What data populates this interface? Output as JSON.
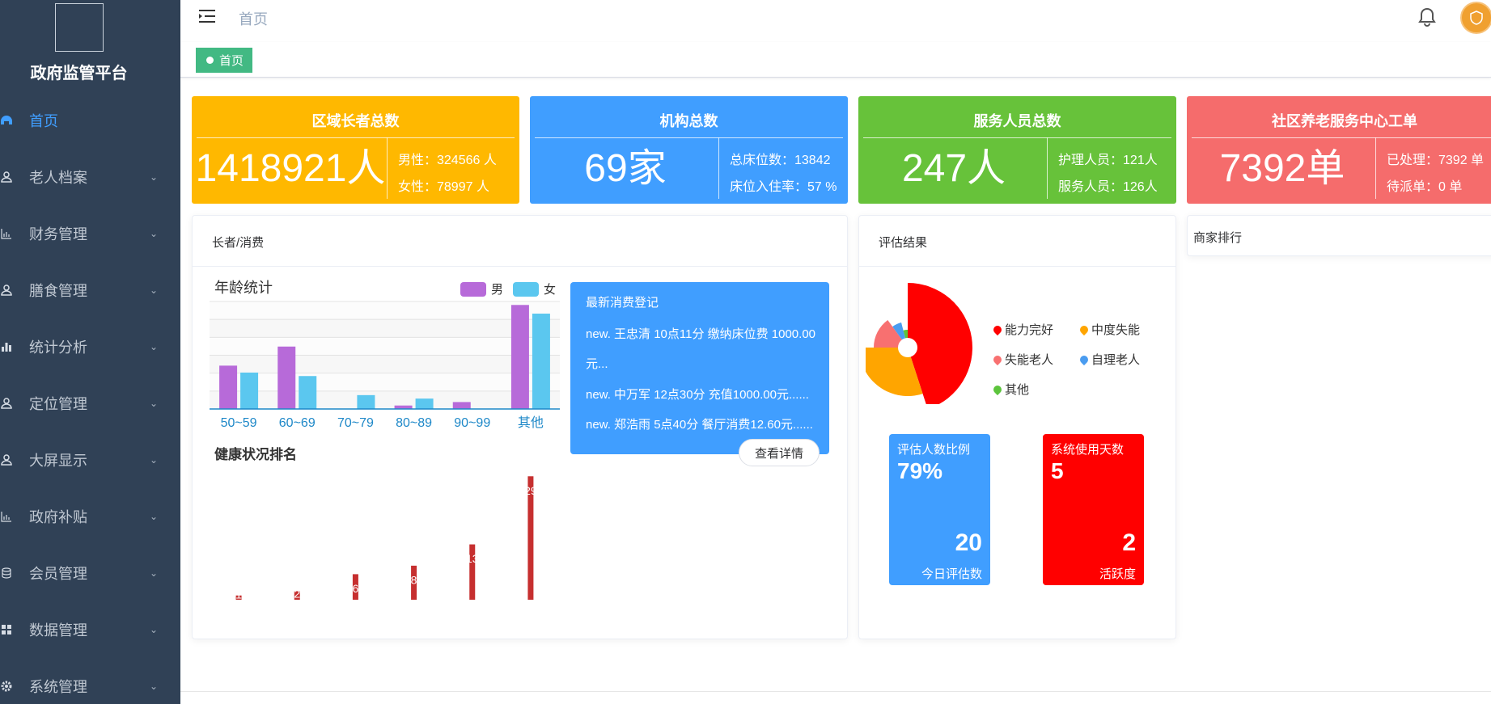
{
  "app": {
    "title": "政府监管平台"
  },
  "sidebar": {
    "items": [
      {
        "label": "首页",
        "icon": "dashboard-icon",
        "active": true
      },
      {
        "label": "老人档案",
        "icon": "user-icon"
      },
      {
        "label": "财务管理",
        "icon": "chart-icon"
      },
      {
        "label": "膳食管理",
        "icon": "user-icon"
      },
      {
        "label": "统计分析",
        "icon": "bar-chart-icon"
      },
      {
        "label": "定位管理",
        "icon": "user-icon"
      },
      {
        "label": "大屏显示",
        "icon": "user-icon"
      },
      {
        "label": "政府补贴",
        "icon": "chart-icon"
      },
      {
        "label": "会员管理",
        "icon": "database-icon"
      },
      {
        "label": "数据管理",
        "icon": "grid-icon"
      },
      {
        "label": "系统管理",
        "icon": "gear-icon"
      }
    ]
  },
  "header": {
    "breadcrumb": "首页"
  },
  "tags": {
    "home": "首页"
  },
  "stats": [
    {
      "title": "区域长者总数",
      "big": "1418921人",
      "sub1": "男性：324566 人",
      "sub2": "女性：78997 人",
      "color": "#ffb800"
    },
    {
      "title": "机构总数",
      "big": "69家",
      "sub1": "总床位数：13842",
      "sub2": "床位入住率：57 %",
      "color": "#409eff"
    },
    {
      "title": "服务人员总数",
      "big": "247人",
      "sub1": "护理人员：121人",
      "sub2": "服务人员：126人",
      "color": "#67c23a"
    },
    {
      "title": "社区养老服务中心工单",
      "big": "7392单",
      "sub1": "已处理：7392 单",
      "sub2": "待派单：0 单",
      "color": "#f56c6c"
    }
  ],
  "panels": {
    "consume": {
      "title": "长者/消费"
    },
    "eval": {
      "title": "评估结果"
    },
    "merchant": {
      "title": "商家排行"
    }
  },
  "chart_data": [
    {
      "type": "bar",
      "title": "年龄统计",
      "categories": [
        "50~59",
        "60~69",
        "70~79",
        "80~89",
        "90~99",
        "其他"
      ],
      "series": [
        {
          "name": "男",
          "values": [
            25,
            36,
            0,
            2,
            4,
            60
          ],
          "color": "#b76ad9"
        },
        {
          "name": "女",
          "values": [
            21,
            19,
            8,
            6,
            0,
            55
          ],
          "color": "#5bc7ef"
        }
      ],
      "ylim": [
        0,
        62
      ]
    },
    {
      "type": "bar",
      "title": "健康状况排名",
      "values": [
        1,
        2,
        6,
        8,
        13,
        29
      ],
      "color": "#c62f2f",
      "ylim": [
        0,
        30
      ]
    },
    {
      "type": "pie",
      "title": "评估结果",
      "slices": [
        {
          "name": "能力完好",
          "value": 45,
          "color": "#ff0000"
        },
        {
          "name": "中度失能",
          "value": 30,
          "color": "#ffa500"
        },
        {
          "name": "失能老人",
          "value": 15,
          "color": "#f87070"
        },
        {
          "name": "自理老人",
          "value": 6,
          "color": "#4a9cf0"
        },
        {
          "name": "其他",
          "value": 4,
          "color": "#5cc43c"
        }
      ]
    }
  ],
  "consume_records": {
    "title": "最新消费登记",
    "lines": [
      "new. 王忠清 10点11分 缴纳床位费 1000.00",
      "元...",
      "new. 中万军 12点30分 充值1000.00元......",
      "new. 郑浩雨 5点40分 餐厅消费12.60元......"
    ],
    "button": "查看详情"
  },
  "metrics": {
    "ratio": {
      "label": "评估人数比例",
      "value": "79%",
      "num": "20",
      "foot": "今日评估数",
      "color": "#409eff"
    },
    "days": {
      "label": "系统使用天数",
      "value": "5",
      "num": "2",
      "foot": "活跃度",
      "color": "#ff0000"
    }
  }
}
